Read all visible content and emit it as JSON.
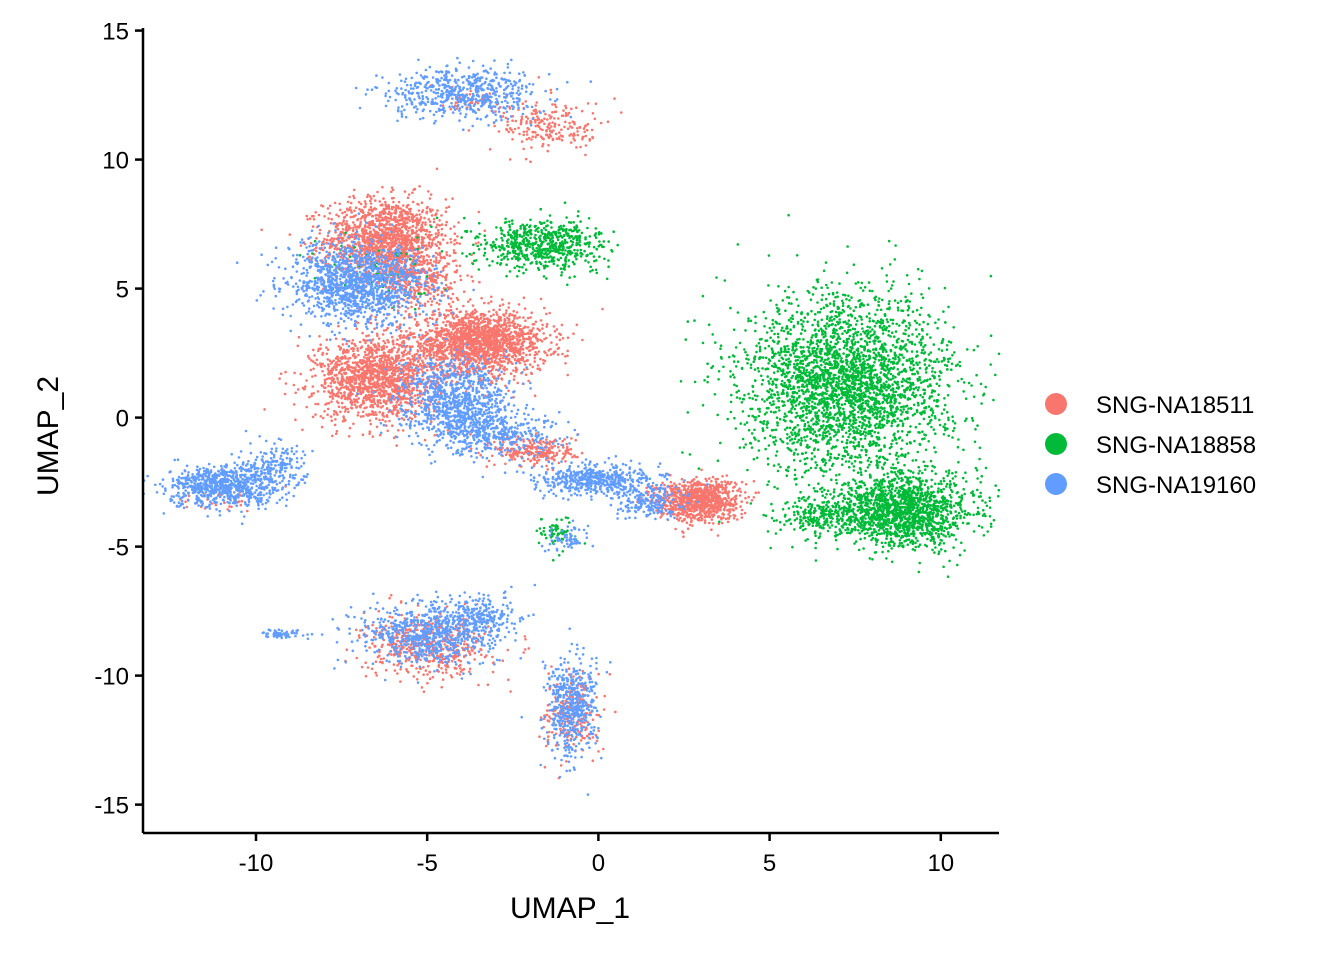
{
  "chart_data": {
    "type": "scatter",
    "title": "",
    "xlabel": "UMAP_1",
    "ylabel": "UMAP_2",
    "xlim": [
      -13.3,
      11.7
    ],
    "ylim": [
      -16.1,
      15.1
    ],
    "x_ticks": [
      -10,
      -5,
      0,
      5,
      10
    ],
    "x_tick_labels": [
      "-10",
      "-5",
      "0",
      "5",
      "10"
    ],
    "y_ticks": [
      15,
      10,
      5,
      0,
      -5,
      -10,
      -15
    ],
    "y_tick_labels": [
      "15",
      "10",
      "5",
      "0",
      "-5",
      "-10",
      "-15"
    ],
    "grid": false,
    "legend_position": "right",
    "series": [
      {
        "name": "SNG-NA18511",
        "color": "#F8766D",
        "clusters": [
          {
            "cx": -6.2,
            "cy": 6.9,
            "sx": 0.9,
            "sy": 0.8,
            "n": 1400
          },
          {
            "cx": -5.2,
            "cy": 5.3,
            "sx": 0.6,
            "sy": 0.6,
            "n": 300
          },
          {
            "cx": -3.5,
            "cy": 2.9,
            "sx": 1.0,
            "sy": 0.6,
            "n": 1700
          },
          {
            "cx": -6.5,
            "cy": 1.5,
            "sx": 0.9,
            "sy": 0.8,
            "n": 1400
          },
          {
            "cx": -1.8,
            "cy": -1.3,
            "sx": 0.6,
            "sy": 0.3,
            "n": 250
          },
          {
            "cx": 2.9,
            "cy": -3.2,
            "sx": 0.6,
            "sy": 0.4,
            "n": 900
          },
          {
            "cx": -1.4,
            "cy": 11.3,
            "sx": 0.8,
            "sy": 0.5,
            "n": 220
          },
          {
            "cx": -5.0,
            "cy": -8.9,
            "sx": 0.9,
            "sy": 0.6,
            "n": 500
          },
          {
            "cx": -0.8,
            "cy": -11.5,
            "sx": 0.4,
            "sy": 0.8,
            "n": 220
          },
          {
            "cx": -11.0,
            "cy": -3.0,
            "sx": 0.6,
            "sy": 0.3,
            "n": 40
          },
          {
            "cx": -3.8,
            "cy": 12.3,
            "sx": 0.4,
            "sy": 0.3,
            "n": 40
          }
        ]
      },
      {
        "name": "SNG-NA18858",
        "color": "#00BA38",
        "clusters": [
          {
            "cx": 7.3,
            "cy": 1.3,
            "sx": 1.5,
            "sy": 1.7,
            "n": 3000
          },
          {
            "cx": 8.9,
            "cy": -3.6,
            "sx": 1.0,
            "sy": 0.7,
            "n": 1500
          },
          {
            "cx": -1.6,
            "cy": 6.7,
            "sx": 0.9,
            "sy": 0.5,
            "n": 650
          },
          {
            "cx": 6.5,
            "cy": -3.9,
            "sx": 0.8,
            "sy": 0.4,
            "n": 250
          },
          {
            "cx": -1.2,
            "cy": -4.5,
            "sx": 0.3,
            "sy": 0.3,
            "n": 60
          },
          {
            "cx": -6.5,
            "cy": 5.7,
            "sx": 1.0,
            "sy": 0.7,
            "n": 60
          }
        ]
      },
      {
        "name": "SNG-NA19160",
        "color": "#619CFF",
        "clusters": [
          {
            "cx": -7.0,
            "cy": 5.2,
            "sx": 1.0,
            "sy": 0.8,
            "n": 1300
          },
          {
            "cx": -4.2,
            "cy": 0.6,
            "sx": 0.8,
            "sy": 0.8,
            "n": 900
          },
          {
            "cx": -3.0,
            "cy": -0.6,
            "sx": 0.9,
            "sy": 0.4,
            "n": 350
          },
          {
            "cx": 0.0,
            "cy": -2.4,
            "sx": 0.9,
            "sy": 0.3,
            "n": 500
          },
          {
            "cx": 1.5,
            "cy": -3.3,
            "sx": 0.5,
            "sy": 0.3,
            "n": 200
          },
          {
            "cx": -4.0,
            "cy": 12.6,
            "sx": 1.1,
            "sy": 0.5,
            "n": 600
          },
          {
            "cx": -5.0,
            "cy": -8.4,
            "sx": 1.0,
            "sy": 0.6,
            "n": 700
          },
          {
            "cx": -3.6,
            "cy": -7.7,
            "sx": 0.6,
            "sy": 0.4,
            "n": 220
          },
          {
            "cx": -11.0,
            "cy": -2.7,
            "sx": 0.8,
            "sy": 0.4,
            "n": 700
          },
          {
            "cx": -9.6,
            "cy": -2.0,
            "sx": 0.5,
            "sy": 0.5,
            "n": 220
          },
          {
            "cx": -0.8,
            "cy": -11.3,
            "sx": 0.35,
            "sy": 1.0,
            "n": 500
          },
          {
            "cx": -9.3,
            "cy": -8.4,
            "sx": 0.4,
            "sy": 0.1,
            "n": 60
          },
          {
            "cx": -0.9,
            "cy": -4.7,
            "sx": 0.3,
            "sy": 0.3,
            "n": 60
          }
        ]
      }
    ]
  }
}
